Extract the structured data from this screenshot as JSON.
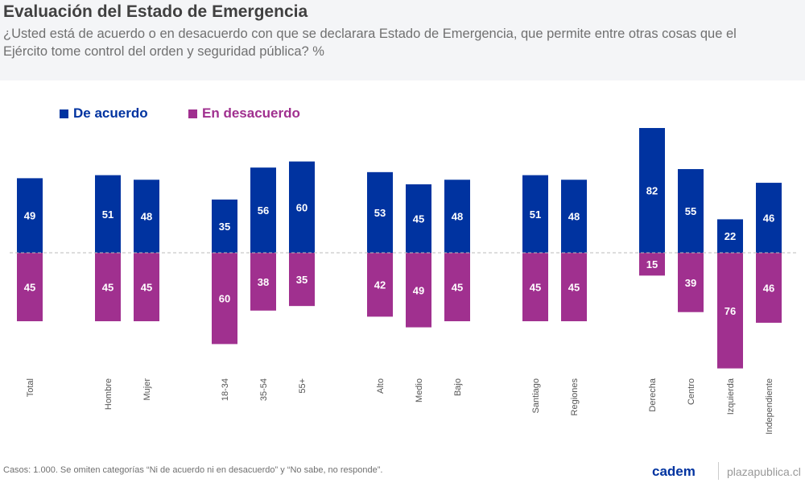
{
  "title": "Evaluación del Estado de Emergencia",
  "subtitle": "¿Usted está de acuerdo o en desacuerdo con que se declarara Estado de Emergencia, que permite entre otras cosas que el Ejército tome control del orden y seguridad pública? %",
  "footer": "Casos: 1.000. Se omiten categorías “Ni de acuerdo ni en desacuerdo” y “No sabe, no responde”.",
  "logo": "cadem",
  "site": "plazapublica.cl",
  "chart_data": {
    "type": "bar",
    "categories": [
      "Total",
      "Hombre",
      "Mujer",
      "18-34",
      "35-54",
      "55+",
      "Alto",
      "Medio",
      "Bajo",
      "Santiago",
      "Regiones",
      "Derecha",
      "Centro",
      "Izquierda",
      "Independiente"
    ],
    "series": [
      {
        "name": "De acuerdo",
        "color": "#0033a0",
        "values": [
          49,
          51,
          48,
          35,
          56,
          60,
          53,
          45,
          48,
          51,
          48,
          82,
          55,
          22,
          46
        ]
      },
      {
        "name": "En desacuerdo",
        "color": "#a0308f",
        "values": [
          45,
          45,
          45,
          60,
          38,
          35,
          42,
          49,
          45,
          45,
          45,
          15,
          39,
          76,
          46
        ]
      }
    ],
    "legend": "top-left",
    "grid": false
  }
}
